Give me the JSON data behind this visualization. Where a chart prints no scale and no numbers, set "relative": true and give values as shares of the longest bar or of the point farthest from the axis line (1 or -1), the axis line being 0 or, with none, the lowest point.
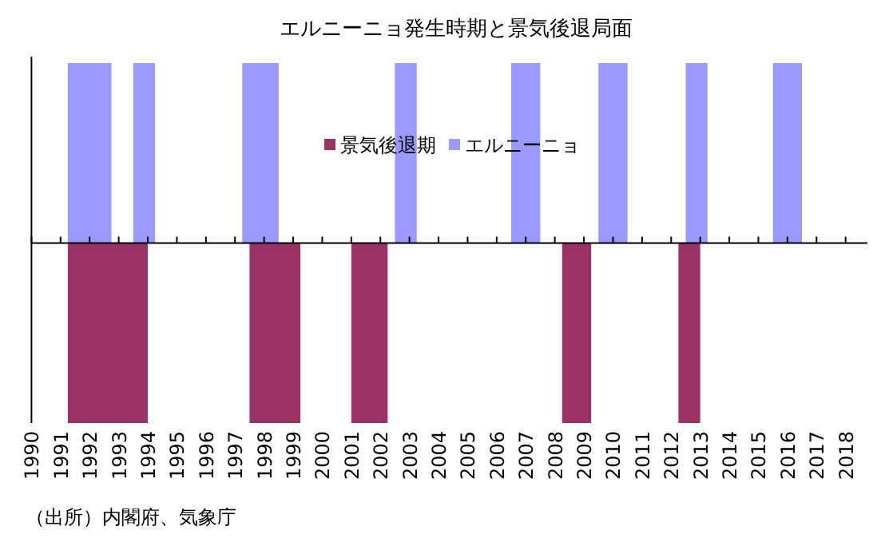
{
  "chart_data": {
    "type": "area",
    "title": "エルニーニョ発生時期と景気後退局面",
    "relative": true,
    "xlim": [
      "1990-01",
      "2018-10"
    ],
    "xticks": [
      "1990",
      "1991",
      "1992",
      "1993",
      "1994",
      "1995",
      "1996",
      "1997",
      "1998",
      "1999",
      "2000",
      "2001",
      "2002",
      "2003",
      "2004",
      "2005",
      "2006",
      "2007",
      "2008",
      "2009",
      "2010",
      "2011",
      "2012",
      "2013",
      "2014",
      "2015",
      "2016",
      "2017",
      "2018"
    ],
    "series": [
      {
        "name": "景気後退期",
        "color": "#993366",
        "x": [
          "1991-04",
          "1991-04",
          "1994-01",
          "1994-01",
          "1997-07",
          "1997-07",
          "1999-04",
          "1999-04",
          "2001-01",
          "2001-01",
          "2002-04",
          "2002-04",
          "2008-04",
          "2008-04",
          "2009-04",
          "2009-04",
          "2012-04",
          "2012-04",
          "2013-01",
          "2013-01"
        ],
        "values": [
          0,
          -1,
          -1,
          0,
          0,
          -1,
          -1,
          0,
          0,
          -1,
          -1,
          0,
          0,
          -1,
          -1,
          0,
          0,
          -1,
          -1,
          0
        ]
      },
      {
        "name": "エルニーニョ",
        "color": "#9999ff",
        "x": [
          "1991-04",
          "1991-04",
          "1992-10",
          "1992-10",
          "1993-07",
          "1993-07",
          "1994-04",
          "1994-04",
          "1997-04",
          "1997-04",
          "1998-07",
          "1998-07",
          "2002-07",
          "2002-07",
          "2003-04",
          "2003-04",
          "2006-07",
          "2006-07",
          "2007-07",
          "2007-07",
          "2009-07",
          "2009-07",
          "2010-07",
          "2010-07",
          "2012-07",
          "2012-07",
          "2013-04",
          "2013-04",
          "2015-07",
          "2015-07",
          "2016-07",
          "2016-07"
        ],
        "values": [
          0,
          1,
          1,
          0,
          0,
          1,
          1,
          0,
          0,
          1,
          1,
          0,
          0,
          1,
          1,
          0,
          0,
          1,
          1,
          0,
          0,
          1,
          1,
          0,
          0,
          1,
          1,
          0,
          0,
          1,
          1,
          0
        ]
      }
    ],
    "legend": "top",
    "annotations": [
      "（出所）内閣府、気象庁"
    ]
  }
}
